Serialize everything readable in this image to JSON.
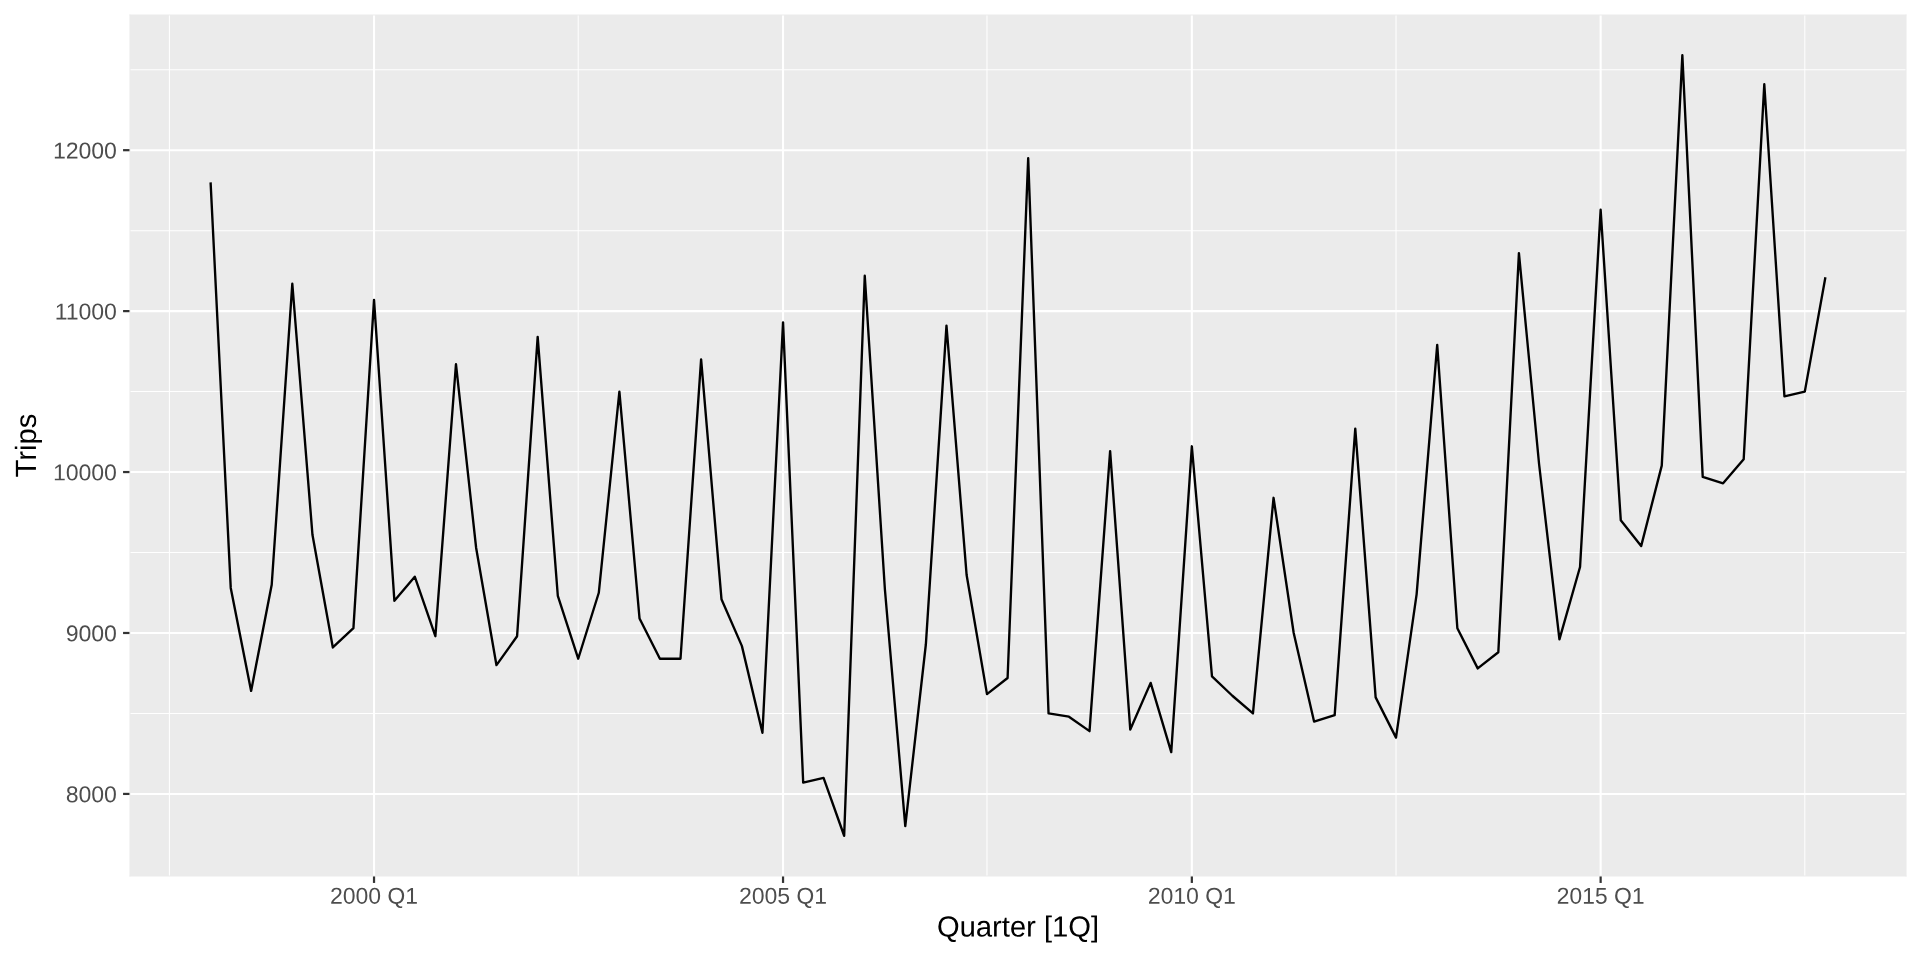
{
  "chart_data": {
    "type": "line",
    "xlabel": "Quarter [1Q]",
    "ylabel": "Trips",
    "x": [
      "1998-01",
      "1998-04",
      "1998-07",
      "1998-10",
      "1999-01",
      "1999-04",
      "1999-07",
      "1999-10",
      "2000-01",
      "2000-04",
      "2000-07",
      "2000-10",
      "2001-01",
      "2001-04",
      "2001-07",
      "2001-10",
      "2002-01",
      "2002-04",
      "2002-07",
      "2002-10",
      "2003-01",
      "2003-04",
      "2003-07",
      "2003-10",
      "2004-01",
      "2004-04",
      "2004-07",
      "2004-10",
      "2005-01",
      "2005-04",
      "2005-07",
      "2005-10",
      "2006-01",
      "2006-04",
      "2006-07",
      "2006-10",
      "2007-01",
      "2007-04",
      "2007-07",
      "2007-10",
      "2008-01",
      "2008-04",
      "2008-07",
      "2008-10",
      "2009-01",
      "2009-04",
      "2009-07",
      "2009-10",
      "2010-01",
      "2010-04",
      "2010-07",
      "2010-10",
      "2011-01",
      "2011-04",
      "2011-07",
      "2011-10",
      "2012-01",
      "2012-04",
      "2012-07",
      "2012-10",
      "2013-01",
      "2013-04",
      "2013-07",
      "2013-10",
      "2014-01",
      "2014-04",
      "2014-07",
      "2014-10",
      "2015-01",
      "2015-04",
      "2015-07",
      "2015-10",
      "2016-01",
      "2016-04",
      "2016-07",
      "2016-10",
      "2017-01",
      "2017-04",
      "2017-07",
      "2017-10"
    ],
    "series": [
      {
        "color": "#000000",
        "values": [
          11800,
          9280,
          8640,
          9300,
          11170,
          9610,
          8910,
          9030,
          11070,
          9200,
          9350,
          8980,
          10670,
          9530,
          8800,
          8980,
          10840,
          9230,
          8840,
          9250,
          10500,
          9090,
          8840,
          8840,
          10700,
          9210,
          8920,
          8380,
          10930,
          8070,
          8100,
          7740,
          11220,
          9270,
          7800,
          8930,
          10910,
          9360,
          8620,
          8720,
          11950,
          8500,
          8480,
          8390,
          10130,
          8400,
          8690,
          8260,
          10160,
          8730,
          8610,
          8500,
          9840,
          9000,
          8450,
          8490,
          10270,
          8600,
          8350,
          9240,
          10790,
          9030,
          8780,
          8880,
          11360,
          10050,
          8960,
          9410,
          11630,
          9700,
          9540,
          10040,
          12590,
          9970,
          9930,
          10080,
          12410,
          10470,
          10500,
          11210
        ]
      }
    ],
    "xlim": [
      "1997-01-06",
      "2018-09-26"
    ],
    "xticks": [
      {
        "value": "1997-07",
        "label": null
      },
      {
        "value": "2000-01",
        "label": "2000 Q1"
      },
      {
        "value": "2002-07",
        "label": null
      },
      {
        "value": "2005-01",
        "label": "2005 Q1"
      },
      {
        "value": "2007-07",
        "label": null
      },
      {
        "value": "2010-01",
        "label": "2010 Q1"
      },
      {
        "value": "2012-07",
        "label": null
      },
      {
        "value": "2015-01",
        "label": "2015 Q1"
      },
      {
        "value": "2017-07",
        "label": null
      }
    ],
    "ylim": [
      7490,
      12840
    ],
    "yticks": [
      8000,
      {
        "value": 8500,
        "label": null
      },
      9000,
      {
        "value": 9500,
        "label": null
      },
      10000,
      {
        "value": 10500,
        "label": null
      },
      11000,
      {
        "value": 11500,
        "label": null
      },
      12000,
      {
        "value": 12500,
        "label": null
      }
    ],
    "grid": true
  }
}
